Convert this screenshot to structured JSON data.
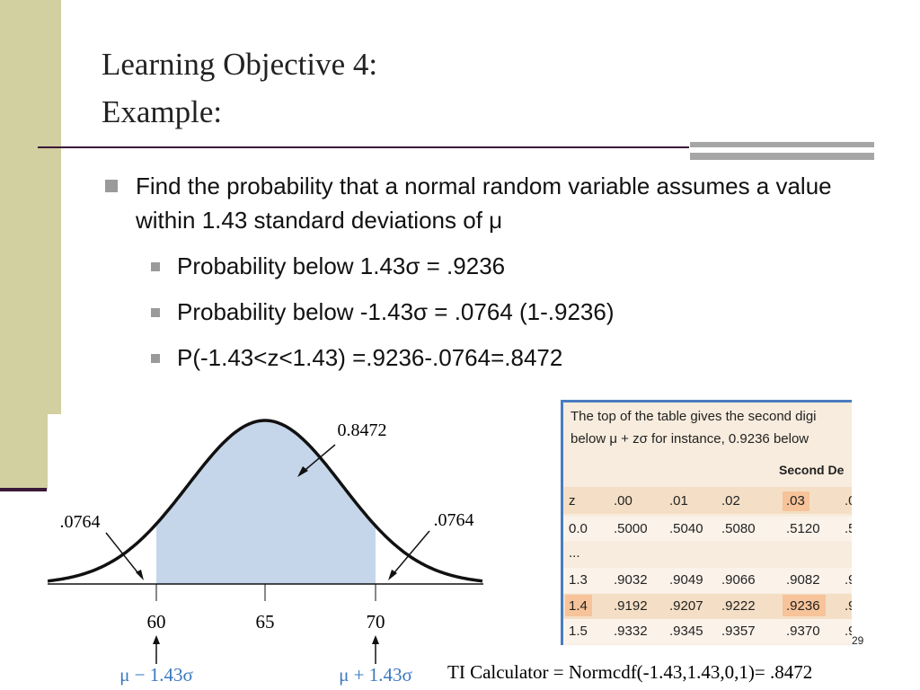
{
  "header": {
    "title_lines": [
      "Learning Objective 4:",
      "Example:"
    ]
  },
  "bullets": [
    {
      "level": 1,
      "text": "Find the probability that a normal random variable assumes a value within 1.43 standard deviations of μ"
    },
    {
      "level": 2,
      "text": "Probability below 1.43σ =  .9236"
    },
    {
      "level": 2,
      "text": "Probability below -1.43σ = .0764 (1-.9236)"
    },
    {
      "level": 2,
      "text": "P(-1.43<z<1.43) =.9236-.0764=.8472"
    }
  ],
  "figure": {
    "center_label": "0.8472",
    "left_tail_label": ".0764",
    "right_tail_label": ".0764",
    "axis_labels": [
      "60",
      "65",
      "70"
    ],
    "left_bound_label": "μ − 1.43σ",
    "right_bound_label": "μ + 1.43σ"
  },
  "table": {
    "caption_lines": [
      "The top of the table gives the second digi",
      "below μ + zσ for instance, 0.9236 below"
    ],
    "subheader": "Second De",
    "header": [
      "z",
      ".00",
      ".01",
      ".02",
      ".03",
      ".0"
    ],
    "rows": [
      [
        "0.0",
        ".5000",
        ".5040",
        ".5080",
        ".5120",
        ".5"
      ],
      [
        "...",
        "",
        "",
        "",
        "",
        ""
      ],
      [
        "1.3",
        ".9032",
        ".9049",
        ".9066",
        ".9082",
        ".9"
      ],
      [
        "1.4",
        ".9192",
        ".9207",
        ".9222",
        ".9236",
        ".9"
      ],
      [
        "1.5",
        ".9332",
        ".9345",
        ".9357",
        ".9370",
        ".9"
      ]
    ]
  },
  "footer": {
    "page_number": "29",
    "note": "TI Calculator = Normcdf(-1.43,1.43,0,1)= .8472"
  }
}
